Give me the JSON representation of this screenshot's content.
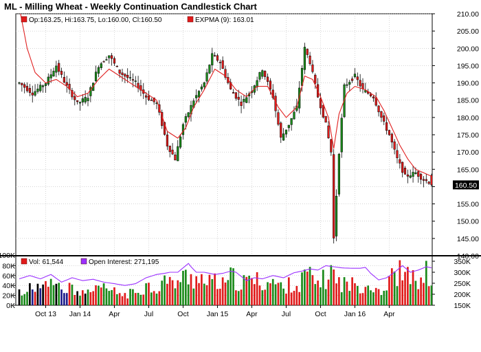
{
  "title": "ML - Milling Wheat - Weekly Continuation Candlestick Chart",
  "colors": {
    "up": "#1a8a1a",
    "down": "#e01b1b",
    "ema": "#e02020",
    "oi": "#9b30ff",
    "black_bar": "#000000",
    "navy_bar": "#1c1c8c",
    "grid": "#bbbbbb"
  },
  "chart_data": [
    {
      "type": "candlestick",
      "legend": {
        "ohlc": "Op:163.25, Hi:163.75, Lo:160.00, Cl:160.50",
        "ema": "EXPMA (9): 163.01"
      },
      "last_price_label": "160.50",
      "last_price": 160.5,
      "ylim": [
        140,
        210
      ],
      "y_ticks": [
        "140.00",
        "145.00",
        "150.00",
        "155.00",
        "160.00",
        "165.00",
        "170.00",
        "175.00",
        "180.00",
        "185.00",
        "190.00",
        "195.00",
        "200.00",
        "205.00",
        "210.00"
      ],
      "x_tick_labels": [
        "Oct 13",
        "Jan 14",
        "Apr",
        "Jul",
        "Oct",
        "Jan 15",
        "Apr",
        "Jul",
        "Oct",
        "Jan 16",
        "Apr"
      ],
      "week_anchors": [
        [
          0,
          190
        ],
        [
          5,
          187
        ],
        [
          10,
          190
        ],
        [
          14,
          195
        ],
        [
          18,
          189
        ],
        [
          22,
          184
        ],
        [
          26,
          186
        ],
        [
          30,
          195
        ],
        [
          34,
          198
        ],
        [
          38,
          193
        ],
        [
          44,
          190
        ],
        [
          48,
          186
        ],
        [
          52,
          184
        ],
        [
          56,
          172
        ],
        [
          59,
          168
        ],
        [
          62,
          178
        ],
        [
          66,
          185
        ],
        [
          70,
          190
        ],
        [
          73,
          198
        ],
        [
          76,
          196
        ],
        [
          80,
          188
        ],
        [
          84,
          184
        ],
        [
          88,
          188
        ],
        [
          92,
          194
        ],
        [
          96,
          186
        ],
        [
          99,
          174
        ],
        [
          102,
          178
        ],
        [
          105,
          183
        ],
        [
          108,
          200
        ],
        [
          110,
          196
        ],
        [
          113,
          186
        ],
        [
          116,
          178
        ],
        [
          118,
          170
        ],
        [
          119,
          145
        ],
        [
          121,
          170
        ],
        [
          123,
          189
        ],
        [
          127,
          192
        ],
        [
          130,
          188
        ],
        [
          134,
          186
        ],
        [
          137,
          180
        ],
        [
          140,
          175
        ],
        [
          143,
          168
        ],
        [
          146,
          163
        ],
        [
          150,
          164
        ],
        [
          153,
          162
        ],
        [
          156,
          161
        ]
      ],
      "ema_anchors": [
        [
          0,
          212
        ],
        [
          3,
          200
        ],
        [
          6,
          193
        ],
        [
          10,
          190
        ],
        [
          14,
          191
        ],
        [
          18,
          189
        ],
        [
          22,
          186
        ],
        [
          26,
          187
        ],
        [
          30,
          191
        ],
        [
          34,
          194
        ],
        [
          38,
          192
        ],
        [
          44,
          189
        ],
        [
          48,
          187
        ],
        [
          52,
          185
        ],
        [
          56,
          176
        ],
        [
          60,
          174
        ],
        [
          63,
          177
        ],
        [
          66,
          183
        ],
        [
          70,
          188
        ],
        [
          74,
          194
        ],
        [
          78,
          192
        ],
        [
          82,
          188
        ],
        [
          86,
          186
        ],
        [
          90,
          189
        ],
        [
          94,
          189
        ],
        [
          98,
          183
        ],
        [
          101,
          180
        ],
        [
          105,
          183
        ],
        [
          108,
          192
        ],
        [
          111,
          191
        ],
        [
          114,
          186
        ],
        [
          117,
          180
        ],
        [
          119,
          171
        ],
        [
          121,
          181
        ],
        [
          124,
          187
        ],
        [
          127,
          189
        ],
        [
          131,
          188
        ],
        [
          135,
          186
        ],
        [
          138,
          182
        ],
        [
          141,
          177
        ],
        [
          144,
          172
        ],
        [
          147,
          168
        ],
        [
          150,
          165
        ],
        [
          153,
          164
        ],
        [
          156,
          163
        ]
      ]
    },
    {
      "type": "bar",
      "legend": {
        "vol": "Vol: 61,544",
        "oi": "Open Interest: 271,195"
      },
      "ylim": [
        0,
        100000
      ],
      "y_ticks_left": [
        "0K",
        "20K",
        "40K",
        "60K",
        "80K",
        "100K"
      ],
      "y2lim": [
        150000,
        375000
      ],
      "y_ticks_right": [
        "150K",
        "200K",
        "250K",
        "300K",
        "350K"
      ],
      "vol_anchors": [
        [
          0,
          30
        ],
        [
          5,
          35
        ],
        [
          10,
          40
        ],
        [
          13,
          48
        ],
        [
          16,
          30
        ],
        [
          20,
          38
        ],
        [
          24,
          30
        ],
        [
          28,
          28
        ],
        [
          32,
          36
        ],
        [
          36,
          28
        ],
        [
          40,
          22
        ],
        [
          44,
          28
        ],
        [
          48,
          42
        ],
        [
          52,
          35
        ],
        [
          55,
          55
        ],
        [
          57,
          45
        ],
        [
          60,
          52
        ],
        [
          63,
          60
        ],
        [
          66,
          55
        ],
        [
          68,
          70
        ],
        [
          70,
          45
        ],
        [
          74,
          50
        ],
        [
          78,
          40
        ],
        [
          80,
          60
        ],
        [
          84,
          45
        ],
        [
          88,
          55
        ],
        [
          92,
          48
        ],
        [
          96,
          50
        ],
        [
          100,
          35
        ],
        [
          104,
          50
        ],
        [
          106,
          35
        ],
        [
          108,
          70
        ],
        [
          112,
          48
        ],
        [
          116,
          55
        ],
        [
          118,
          75
        ],
        [
          120,
          50
        ],
        [
          124,
          45
        ],
        [
          128,
          42
        ],
        [
          132,
          45
        ],
        [
          134,
          40
        ],
        [
          138,
          30
        ],
        [
          140,
          55
        ],
        [
          144,
          70
        ],
        [
          148,
          55
        ],
        [
          150,
          62
        ],
        [
          152,
          45
        ],
        [
          154,
          68
        ],
        [
          156,
          50
        ]
      ],
      "oi_anchors": [
        [
          0,
          270
        ],
        [
          4,
          285
        ],
        [
          8,
          270
        ],
        [
          12,
          290
        ],
        [
          16,
          255
        ],
        [
          20,
          275
        ],
        [
          24,
          262
        ],
        [
          28,
          268
        ],
        [
          32,
          255
        ],
        [
          36,
          248
        ],
        [
          40,
          240
        ],
        [
          44,
          248
        ],
        [
          48,
          275
        ],
        [
          52,
          290
        ],
        [
          55,
          295
        ],
        [
          57,
          300
        ],
        [
          60,
          300
        ],
        [
          64,
          340
        ],
        [
          65,
          325
        ],
        [
          67,
          300
        ],
        [
          70,
          300
        ],
        [
          74,
          290
        ],
        [
          77,
          295
        ],
        [
          80,
          305
        ],
        [
          82,
          300
        ],
        [
          86,
          262
        ],
        [
          89,
          275
        ],
        [
          92,
          270
        ],
        [
          96,
          285
        ],
        [
          100,
          275
        ],
        [
          104,
          298
        ],
        [
          107,
          305
        ],
        [
          110,
          315
        ],
        [
          113,
          310
        ],
        [
          116,
          330
        ],
        [
          119,
          325
        ],
        [
          122,
          320
        ],
        [
          126,
          318
        ],
        [
          129,
          318
        ],
        [
          131,
          322
        ],
        [
          133,
          295
        ],
        [
          136,
          265
        ],
        [
          139,
          275
        ],
        [
          142,
          300
        ],
        [
          145,
          330
        ],
        [
          148,
          300
        ],
        [
          151,
          310
        ],
        [
          154,
          325
        ],
        [
          156,
          320
        ]
      ]
    }
  ]
}
